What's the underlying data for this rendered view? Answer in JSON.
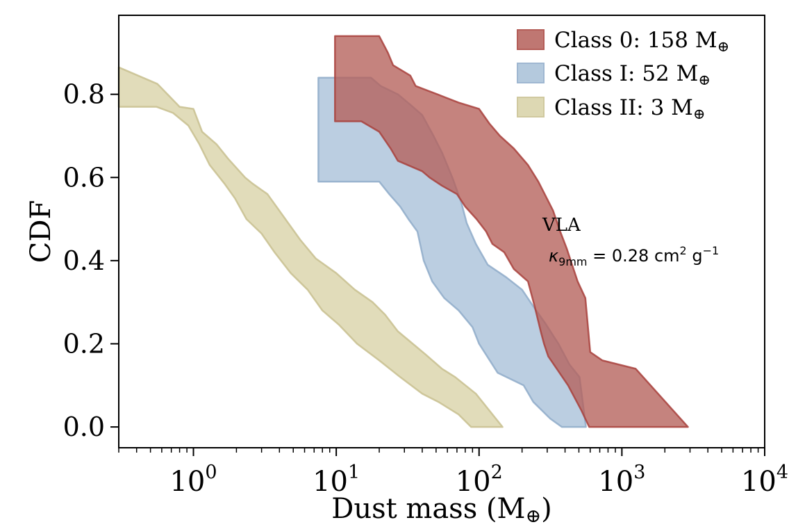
{
  "chart_data": {
    "type": "area",
    "xlabel": "Dust mass (M",
    "xlabel_symbol": "⊕",
    "xlabel_close": ")",
    "ylabel": "CDF",
    "xscale": "log",
    "xlim": [
      0.3,
      10000
    ],
    "ylim": [
      -0.05,
      0.99
    ],
    "x_ticks": [
      {
        "value": 1,
        "base": "10",
        "exp": "0"
      },
      {
        "value": 10,
        "base": "10",
        "exp": "1"
      },
      {
        "value": 100,
        "base": "10",
        "exp": "2"
      },
      {
        "value": 1000,
        "base": "10",
        "exp": "3"
      },
      {
        "value": 10000,
        "base": "10",
        "exp": "4"
      }
    ],
    "y_ticks": [
      {
        "value": 0.0,
        "label": "0.0"
      },
      {
        "value": 0.2,
        "label": "0.2"
      },
      {
        "value": 0.4,
        "label": "0.4"
      },
      {
        "value": 0.6,
        "label": "0.6"
      },
      {
        "value": 0.8,
        "label": "0.8"
      }
    ],
    "legend_position": "top-right",
    "series": [
      {
        "name": "Class II",
        "legend_label": "Class II: 3 M",
        "symbol": "⊕",
        "color": "#d8d2a6",
        "edge": "#c8c08f",
        "upper": [
          [
            0.3,
            0.865
          ],
          [
            0.56,
            0.825
          ],
          [
            0.68,
            0.795
          ],
          [
            0.8,
            0.77
          ],
          [
            1.0,
            0.765
          ],
          [
            1.15,
            0.71
          ],
          [
            1.45,
            0.68
          ],
          [
            1.75,
            0.645
          ],
          [
            2.3,
            0.6
          ],
          [
            2.6,
            0.585
          ],
          [
            3.3,
            0.56
          ],
          [
            4.0,
            0.52
          ],
          [
            5.6,
            0.45
          ],
          [
            7.2,
            0.405
          ],
          [
            10,
            0.37
          ],
          [
            13.5,
            0.33
          ],
          [
            18,
            0.3
          ],
          [
            22,
            0.27
          ],
          [
            27,
            0.23
          ],
          [
            33,
            0.205
          ],
          [
            42,
            0.175
          ],
          [
            55,
            0.14
          ],
          [
            68,
            0.12
          ],
          [
            95,
            0.08
          ],
          [
            146,
            0.0
          ]
        ],
        "lower": [
          [
            146,
            0.0
          ],
          [
            88,
            0.0
          ],
          [
            72,
            0.03
          ],
          [
            52,
            0.06
          ],
          [
            40,
            0.08
          ],
          [
            28,
            0.12
          ],
          [
            20,
            0.16
          ],
          [
            14,
            0.2
          ],
          [
            10.5,
            0.245
          ],
          [
            8,
            0.28
          ],
          [
            6.3,
            0.33
          ],
          [
            4.8,
            0.37
          ],
          [
            3.7,
            0.42
          ],
          [
            3.0,
            0.465
          ],
          [
            2.35,
            0.5
          ],
          [
            1.95,
            0.55
          ],
          [
            1.65,
            0.585
          ],
          [
            1.3,
            0.63
          ],
          [
            1.1,
            0.68
          ],
          [
            0.92,
            0.725
          ],
          [
            0.72,
            0.755
          ],
          [
            0.55,
            0.77
          ],
          [
            0.3,
            0.77
          ]
        ]
      },
      {
        "name": "Class I",
        "legend_label": "Class I: 52 M",
        "symbol": "⊕",
        "color": "#a8c0d8",
        "edge": "#8fabc9",
        "upper": [
          [
            7.5,
            0.84
          ],
          [
            17.5,
            0.84
          ],
          [
            20.5,
            0.82
          ],
          [
            27,
            0.8
          ],
          [
            33,
            0.775
          ],
          [
            40,
            0.75
          ],
          [
            48,
            0.7
          ],
          [
            55,
            0.66
          ],
          [
            65,
            0.6
          ],
          [
            75,
            0.54
          ],
          [
            82,
            0.49
          ],
          [
            95,
            0.44
          ],
          [
            115,
            0.39
          ],
          [
            155,
            0.36
          ],
          [
            200,
            0.33
          ],
          [
            240,
            0.29
          ],
          [
            290,
            0.25
          ],
          [
            360,
            0.2
          ],
          [
            430,
            0.15
          ],
          [
            505,
            0.12
          ],
          [
            560,
            0.0
          ]
        ],
        "lower": [
          [
            560,
            0.0
          ],
          [
            380,
            0.0
          ],
          [
            315,
            0.02
          ],
          [
            240,
            0.06
          ],
          [
            205,
            0.1
          ],
          [
            135,
            0.13
          ],
          [
            100,
            0.2
          ],
          [
            90,
            0.24
          ],
          [
            72,
            0.28
          ],
          [
            57,
            0.31
          ],
          [
            47,
            0.35
          ],
          [
            41,
            0.4
          ],
          [
            37,
            0.47
          ],
          [
            32,
            0.5
          ],
          [
            28,
            0.53
          ],
          [
            23.5,
            0.56
          ],
          [
            20,
            0.59
          ],
          [
            7.5,
            0.59
          ]
        ]
      },
      {
        "name": "Class 0",
        "legend_label": "Class 0:  158 M",
        "symbol": "⊕",
        "color": "#b5605a",
        "edge": "#a8413c",
        "upper": [
          [
            9.8,
            0.94
          ],
          [
            20,
            0.94
          ],
          [
            23,
            0.9
          ],
          [
            25,
            0.87
          ],
          [
            33,
            0.845
          ],
          [
            36,
            0.82
          ],
          [
            51,
            0.8
          ],
          [
            72,
            0.78
          ],
          [
            100,
            0.765
          ],
          [
            118,
            0.73
          ],
          [
            140,
            0.7
          ],
          [
            175,
            0.67
          ],
          [
            220,
            0.63
          ],
          [
            260,
            0.59
          ],
          [
            330,
            0.52
          ],
          [
            370,
            0.47
          ],
          [
            410,
            0.43
          ],
          [
            490,
            0.35
          ],
          [
            555,
            0.31
          ],
          [
            600,
            0.18
          ],
          [
            730,
            0.16
          ],
          [
            1250,
            0.14
          ],
          [
            2900,
            0.0
          ]
        ],
        "lower": [
          [
            2900,
            0.0
          ],
          [
            590,
            0.0
          ],
          [
            520,
            0.04
          ],
          [
            420,
            0.1
          ],
          [
            350,
            0.14
          ],
          [
            305,
            0.17
          ],
          [
            285,
            0.2
          ],
          [
            270,
            0.23
          ],
          [
            245,
            0.29
          ],
          [
            220,
            0.35
          ],
          [
            175,
            0.38
          ],
          [
            150,
            0.42
          ],
          [
            124,
            0.44
          ],
          [
            112,
            0.47
          ],
          [
            96,
            0.5
          ],
          [
            80,
            0.53
          ],
          [
            70,
            0.56
          ],
          [
            55,
            0.58
          ],
          [
            45,
            0.6
          ],
          [
            40,
            0.615
          ],
          [
            27,
            0.64
          ],
          [
            24,
            0.67
          ],
          [
            20,
            0.71
          ],
          [
            15,
            0.735
          ],
          [
            9.8,
            0.735
          ]
        ]
      }
    ],
    "annotation": {
      "line1": "VLA",
      "kappa": "κ",
      "kappa_sub": "9mm",
      "kappa_eq": " = 0.28 cm",
      "kappa_exp1": "2",
      "kappa_unit": " g",
      "kappa_exp2": "−1"
    }
  }
}
